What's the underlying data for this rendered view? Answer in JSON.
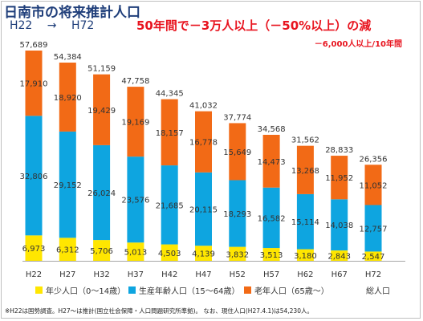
{
  "header": {
    "title": "日南市の将来推計人口",
    "range_from": "H22",
    "range_arrow": "→",
    "range_to": "H72",
    "headline": "50年間で－3万人以上（－50%以上）の減",
    "subline": "－6,000人以上/10年間"
  },
  "footnote": "※H22は国勢調査。H27～は推計(国立社会保障・人口問題研究所準拠)。 なお、現住人口(H27.4.1)は54,230人。",
  "chart_data": {
    "type": "bar",
    "stacked": true,
    "categories": [
      "H22",
      "H27",
      "H32",
      "H37",
      "H42",
      "H47",
      "H52",
      "H57",
      "H62",
      "H67",
      "H72"
    ],
    "series": [
      {
        "name": "年少人口（0～14歳）",
        "color": "#ffe600",
        "values": [
          6973,
          6312,
          5706,
          5013,
          4503,
          4139,
          3832,
          3513,
          3180,
          2843,
          2547
        ]
      },
      {
        "name": "生産年齢人口（15～64歳）",
        "color": "#0ea5e0",
        "values": [
          32806,
          29152,
          26024,
          23576,
          21685,
          20115,
          18293,
          16582,
          15114,
          14038,
          12757
        ]
      },
      {
        "name": "老年人口（65歳～）",
        "color": "#f26a16",
        "values": [
          17910,
          18920,
          19429,
          19169,
          18157,
          16778,
          15649,
          14473,
          13268,
          11952,
          11052
        ]
      }
    ],
    "value_labels": [
      [
        "6,973",
        "6,312",
        "5,706",
        "5,013",
        "4,503",
        "4,139",
        "3,832",
        "3,513",
        "3,180",
        "2,843",
        "2,547"
      ],
      [
        "32,806",
        "29,152",
        "26,024",
        "23,576",
        "21,685",
        "20,115",
        "18,293",
        "16,582",
        "15,114",
        "14,038",
        "12,757"
      ],
      [
        "17,910",
        "18,920",
        "19,429",
        "19,169",
        "18,157",
        "16,778",
        "15,649",
        "14,473",
        "13,268",
        "11,952",
        "11,052"
      ]
    ],
    "total_label": "総人口",
    "totals": [
      57689,
      54384,
      51159,
      47758,
      44345,
      41032,
      37774,
      34568,
      31562,
      28833,
      26356
    ],
    "total_labels": [
      "57,689",
      "54,384",
      "51,159",
      "47,758",
      "44,345",
      "41,032",
      "37,774",
      "34,568",
      "31,562",
      "28,833",
      "26,356"
    ],
    "ylim": [
      0,
      57689
    ],
    "grid": false,
    "legend_position": "bottom"
  }
}
